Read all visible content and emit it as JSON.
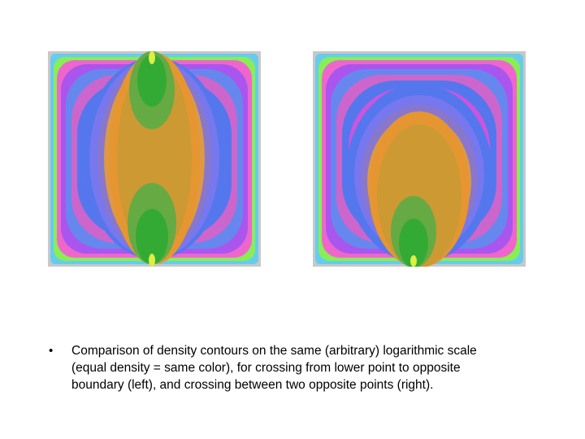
{
  "slide": {
    "bullet_marker": "•",
    "caption": "Comparison of density contours on the same (arbitrary) logarithmic scale (equal density = same color), for crossing from lower point to opposite boundary (left), and crossing between two opposite points (right)."
  },
  "contour_palette": [
    "#c8c8c8",
    "#66ccee",
    "#88ee55",
    "#ee66cc",
    "#aa55ee",
    "#6688ee",
    "#cc66cc",
    "#5577ee",
    "#cc55dd",
    "#7777ee",
    "#cc66aa",
    "#8877cc",
    "#dd9944",
    "#e59630",
    "#cc9933",
    "#66aa44",
    "#33aa33",
    "#ddee44"
  ]
}
